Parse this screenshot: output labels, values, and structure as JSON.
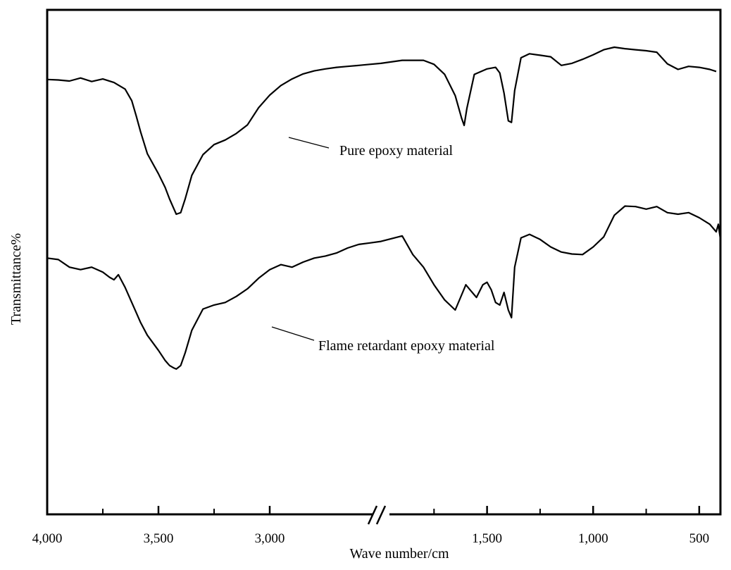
{
  "chart_data": {
    "type": "line",
    "title": "",
    "xlabel": "Wave number/cm",
    "ylabel": "Transmittance%",
    "x_ticks": [
      {
        "value": 4000,
        "label": "4,000"
      },
      {
        "value": 3500,
        "label": "3,500"
      },
      {
        "value": 3000,
        "label": "3,000"
      },
      {
        "value": 1500,
        "label": "1,500"
      },
      {
        "value": 1000,
        "label": "1,000"
      },
      {
        "value": 500,
        "label": "500"
      }
    ],
    "x_axis_break": [
      2500,
      2000
    ],
    "xlim": [
      4000,
      400
    ],
    "ylim": [
      0,
      100
    ],
    "y_ticks_shown": false,
    "grid": false,
    "series": [
      {
        "name": "Pure epoxy material",
        "x": [
          4000,
          3950,
          3900,
          3850,
          3800,
          3750,
          3700,
          3650,
          3620,
          3600,
          3580,
          3550,
          3500,
          3470,
          3450,
          3430,
          3420,
          3400,
          3380,
          3350,
          3300,
          3250,
          3200,
          3150,
          3100,
          3050,
          3000,
          2950,
          2900,
          2850,
          2800,
          2750,
          2700,
          2650,
          2600,
          2550,
          2500,
          1900,
          1800,
          1750,
          1700,
          1650,
          1620,
          1608,
          1595,
          1560,
          1500,
          1460,
          1440,
          1420,
          1400,
          1385,
          1370,
          1340,
          1300,
          1250,
          1200,
          1150,
          1100,
          1050,
          1000,
          950,
          900,
          850,
          800,
          750,
          700,
          650,
          600,
          550,
          500,
          450,
          420
        ],
        "y": [
          86.2,
          86.1,
          85.9,
          86.5,
          85.8,
          86.3,
          85.6,
          84.3,
          82.0,
          79.0,
          75.8,
          71.5,
          67.5,
          64.8,
          62.5,
          60.5,
          59.5,
          59.8,
          62.5,
          67.2,
          71.3,
          73.3,
          74.2,
          75.5,
          77.2,
          80.6,
          83.1,
          85.0,
          86.3,
          87.3,
          87.9,
          88.3,
          88.6,
          88.8,
          89.0,
          89.2,
          89.4,
          90.0,
          90.0,
          89.2,
          87.2,
          83.0,
          78.5,
          77.1,
          80.5,
          87.2,
          88.3,
          88.6,
          87.5,
          83.5,
          78.0,
          77.7,
          84.0,
          90.5,
          91.3,
          91.0,
          90.7,
          89.0,
          89.4,
          90.2,
          91.1,
          92.1,
          92.6,
          92.3,
          92.1,
          91.9,
          91.6,
          89.3,
          88.2,
          88.8,
          88.6,
          88.2,
          87.8
        ]
      },
      {
        "name": "Flame retardant epoxy material",
        "x": [
          4000,
          3950,
          3900,
          3850,
          3800,
          3750,
          3720,
          3700,
          3680,
          3650,
          3620,
          3600,
          3580,
          3550,
          3500,
          3470,
          3450,
          3430,
          3420,
          3400,
          3380,
          3350,
          3300,
          3250,
          3200,
          3150,
          3100,
          3050,
          3000,
          2950,
          2900,
          2850,
          2800,
          2750,
          2700,
          2650,
          2600,
          2550,
          2500,
          1900,
          1850,
          1800,
          1750,
          1700,
          1650,
          1620,
          1600,
          1580,
          1550,
          1520,
          1500,
          1480,
          1460,
          1440,
          1420,
          1400,
          1385,
          1370,
          1340,
          1300,
          1250,
          1200,
          1150,
          1100,
          1050,
          1000,
          950,
          900,
          850,
          800,
          750,
          700,
          650,
          600,
          550,
          500,
          450,
          420,
          410,
          400
        ],
        "y": [
          50.8,
          50.5,
          49.0,
          48.5,
          49.0,
          48.0,
          47.0,
          46.5,
          47.5,
          45.0,
          42.0,
          40.0,
          38.0,
          35.5,
          32.5,
          30.5,
          29.5,
          29.0,
          28.8,
          29.5,
          32.0,
          36.5,
          40.7,
          41.5,
          42.0,
          43.2,
          44.7,
          46.8,
          48.5,
          49.5,
          49.0,
          50.0,
          50.8,
          51.2,
          51.8,
          52.8,
          53.5,
          53.8,
          54.1,
          55.2,
          51.5,
          49.0,
          45.5,
          42.5,
          40.5,
          43.5,
          45.5,
          44.5,
          43.0,
          45.5,
          46.0,
          44.5,
          42.0,
          41.5,
          44.0,
          40.5,
          39.0,
          49.0,
          54.8,
          55.5,
          54.5,
          53.0,
          52.0,
          51.6,
          51.5,
          53.0,
          55.0,
          59.3,
          61.1,
          61.0,
          60.5,
          61.0,
          59.8,
          59.5,
          59.8,
          58.8,
          57.5,
          56.0,
          57.5,
          54.5
        ]
      }
    ],
    "annotations": [
      {
        "text": "Pure epoxy material",
        "series": 0
      },
      {
        "text": "Flame retardant epoxy material",
        "series": 1
      }
    ]
  }
}
